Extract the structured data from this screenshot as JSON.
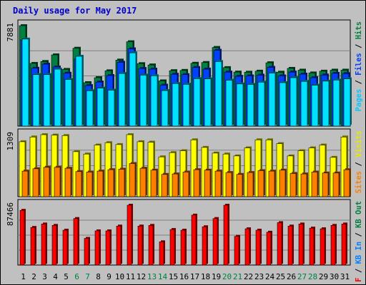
{
  "title": "Daily usage for May 2017",
  "colors": {
    "background": "#c0c0c0",
    "title": "#0000cc",
    "hits": "#008040",
    "files": "#0040ff",
    "pages": "#00e0ff",
    "visits": "#ffff00",
    "sites": "#ff8000",
    "kbytes": "#ff0000",
    "kb_in": "#0080ff",
    "kb_out": "#008040"
  },
  "chart_data": [
    {
      "type": "bar",
      "panel": "hits-files-pages",
      "ymax_label": "7881",
      "ymax": 7881,
      "legend": [
        {
          "text": "Pages",
          "color": "#00c8ff"
        },
        {
          "text": " / ",
          "color": "#000000"
        },
        {
          "text": "Files",
          "color": "#0040ff"
        },
        {
          "text": " / ",
          "color": "#000000"
        },
        {
          "text": "Hits",
          "color": "#008040"
        }
      ],
      "series": [
        {
          "name": "Hits",
          "values": [
            7881,
            4920,
            5070,
            5590,
            4450,
            6110,
            3410,
            3800,
            4340,
            5180,
            6620,
            4900,
            4800,
            3550,
            4350,
            4370,
            4930,
            4990,
            6170,
            4590,
            4240,
            4230,
            4310,
            4970,
            4230,
            4530,
            4390,
            4170,
            4310,
            4390,
            4390
          ]
        },
        {
          "name": "Files",
          "values": [
            6760,
            4540,
            4860,
            4640,
            4150,
            5260,
            3180,
            3460,
            3970,
            5010,
            6060,
            4520,
            4470,
            3210,
            4070,
            4040,
            4600,
            4470,
            5950,
            4240,
            3910,
            3940,
            4000,
            4610,
            3940,
            4240,
            4080,
            3800,
            4010,
            4140,
            4120
          ]
        },
        {
          "name": "Pages",
          "values": [
            6830,
            4040,
            4040,
            4470,
            3660,
            5480,
            2780,
            2980,
            2820,
            4130,
            5750,
            4000,
            3950,
            2790,
            3340,
            3280,
            3730,
            3710,
            5070,
            3600,
            3310,
            3270,
            3450,
            4160,
            3410,
            3800,
            3510,
            3210,
            3530,
            3610,
            3710
          ]
        }
      ]
    },
    {
      "type": "bar",
      "panel": "visits-sites",
      "ymax_label": "1309",
      "ymax": 1309,
      "legend": [
        {
          "text": "Sites",
          "color": "#ff8000"
        },
        {
          "text": " / ",
          "color": "#000000"
        },
        {
          "text": "Visits",
          "color": "#e8e800"
        }
      ],
      "series": [
        {
          "name": "Visits",
          "values": [
            1160,
            1260,
            1309,
            1300,
            1290,
            950,
            900,
            1090,
            1140,
            1100,
            1309,
            1160,
            1150,
            840,
            930,
            970,
            1200,
            1040,
            920,
            900,
            860,
            1030,
            1200,
            1200,
            1120,
            860,
            970,
            1030,
            1090,
            830,
            1260
          ]
        },
        {
          "name": "Sites",
          "values": [
            540,
            590,
            620,
            620,
            600,
            530,
            520,
            540,
            570,
            580,
            700,
            600,
            560,
            470,
            480,
            520,
            570,
            560,
            540,
            510,
            470,
            510,
            550,
            540,
            560,
            490,
            480,
            520,
            500,
            500,
            570
          ]
        }
      ]
    },
    {
      "type": "bar",
      "panel": "kbytes",
      "ymax_label": "87466",
      "ymax": 87466,
      "legend": [
        {
          "text": "KB F",
          "color": "#ff0000"
        },
        {
          "text": " / ",
          "color": "#000000"
        },
        {
          "text": "KB In",
          "color": "#0080ff"
        },
        {
          "text": " / ",
          "color": "#000000"
        },
        {
          "text": "KB Out",
          "color": "#008040"
        }
      ],
      "series": [
        {
          "name": "KB F",
          "values": [
            80000,
            55000,
            60000,
            58000,
            51000,
            68000,
            39000,
            50000,
            50000,
            57000,
            87466,
            57000,
            58000,
            34000,
            52000,
            51000,
            73000,
            56000,
            68000,
            87466,
            42000,
            53000,
            51000,
            48000,
            62000,
            57000,
            60000,
            54000,
            53000,
            58000,
            60000
          ]
        }
      ]
    }
  ],
  "days": [
    "1",
    "2",
    "3",
    "4",
    "5",
    "6",
    "7",
    "8",
    "9",
    "10",
    "11",
    "12",
    "13",
    "14",
    "15",
    "16",
    "17",
    "18",
    "19",
    "20",
    "21",
    "22",
    "23",
    "24",
    "25",
    "26",
    "27",
    "28",
    "29",
    "30",
    "31"
  ],
  "weekend_days": [
    6,
    7,
    13,
    14,
    20,
    21,
    27,
    28
  ]
}
